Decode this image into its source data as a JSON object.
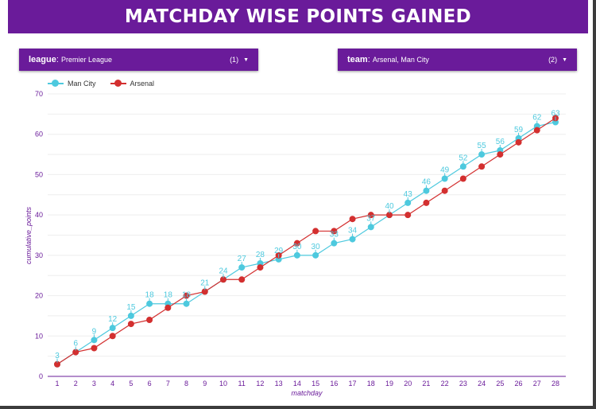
{
  "header": {
    "title": "MATCHDAY WISE POINTS GAINED"
  },
  "controls": {
    "league": {
      "field": "league",
      "value": "Premier League",
      "count": "(1)"
    },
    "team": {
      "field": "team",
      "value": "Arsenal, Man City",
      "count": "(2)"
    }
  },
  "colors": {
    "header_bg": "#6a1b9a",
    "man_city": "#4dc9de",
    "arsenal": "#d32f2f",
    "axis": "#6a1b9a"
  },
  "chart_data": {
    "type": "line",
    "xlabel": "matchday",
    "ylabel": "cumulative_points",
    "ylim": [
      0,
      70
    ],
    "yticks": [
      0,
      10,
      20,
      30,
      40,
      50,
      60,
      70
    ],
    "x": [
      1,
      2,
      3,
      4,
      5,
      6,
      7,
      8,
      9,
      10,
      11,
      12,
      13,
      14,
      15,
      16,
      17,
      18,
      19,
      20,
      21,
      22,
      23,
      24,
      25,
      26,
      27,
      28
    ],
    "legend_position": "top-left",
    "grid": true,
    "series": [
      {
        "name": "Man City",
        "color": "#4dc9de",
        "data_labels": true,
        "values": [
          3,
          6,
          9,
          12,
          15,
          18,
          18,
          18,
          21,
          24,
          27,
          28,
          29,
          30,
          30,
          33,
          34,
          37,
          40,
          43,
          46,
          49,
          52,
          55,
          56,
          59,
          62,
          63
        ]
      },
      {
        "name": "Arsenal",
        "color": "#d32f2f",
        "data_labels": false,
        "values": [
          3,
          6,
          7,
          10,
          13,
          14,
          17,
          20,
          21,
          24,
          24,
          27,
          30,
          33,
          36,
          36,
          39,
          40,
          40,
          40,
          43,
          46,
          49,
          52,
          55,
          58,
          61,
          64
        ]
      }
    ]
  }
}
